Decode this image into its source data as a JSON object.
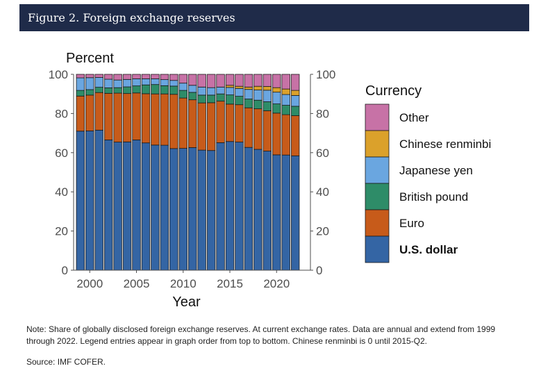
{
  "header": {
    "title": "Figure 2. Foreign exchange reserves"
  },
  "footnote": {
    "note": "Note: Share of globally disclosed foreign exchange reserves. At current exchange rates. Data are annual and extend from 1999 through 2022. Legend entries appear in graph order from top to bottom. Chinese renminbi is 0 until 2015-Q2.",
    "source": "Source: IMF COFER."
  },
  "chart_data": {
    "type": "bar",
    "stacked": true,
    "title": "",
    "ylabel": "Percent",
    "xlabel": "Year",
    "ylim": [
      0,
      100
    ],
    "yticks": [
      "0",
      "20",
      "40",
      "60",
      "80",
      "100"
    ],
    "xticks": [
      "2000",
      "2005",
      "2010",
      "2015",
      "2020"
    ],
    "legend_title": "Currency",
    "legend_position": "right",
    "categories": [
      "1999",
      "2000",
      "2001",
      "2002",
      "2003",
      "2004",
      "2005",
      "2006",
      "2007",
      "2008",
      "2009",
      "2010",
      "2011",
      "2012",
      "2013",
      "2014",
      "2015",
      "2016",
      "2017",
      "2018",
      "2019",
      "2020",
      "2021",
      "2022"
    ],
    "series": [
      {
        "name": "U.S. dollar",
        "color": "#3465a4",
        "values": [
          71.0,
          71.1,
          71.5,
          66.5,
          65.4,
          65.5,
          66.5,
          65.0,
          63.9,
          63.8,
          62.1,
          62.2,
          62.6,
          61.3,
          61.1,
          65.1,
          65.7,
          65.4,
          62.7,
          61.7,
          60.8,
          58.9,
          58.8,
          58.4
        ]
      },
      {
        "name": "Euro",
        "color": "#c75b1a",
        "values": [
          17.9,
          18.3,
          19.2,
          23.8,
          25.0,
          24.7,
          24.0,
          25.1,
          26.1,
          26.2,
          27.7,
          25.7,
          24.4,
          24.1,
          24.4,
          21.2,
          19.1,
          19.1,
          20.2,
          20.7,
          20.6,
          21.3,
          20.6,
          20.5
        ]
      },
      {
        "name": "British pound",
        "color": "#2e8c68",
        "values": [
          2.9,
          2.8,
          2.7,
          2.8,
          2.8,
          3.4,
          3.6,
          4.5,
          4.8,
          4.2,
          4.2,
          3.9,
          3.8,
          4.0,
          3.9,
          3.7,
          4.7,
          4.3,
          4.5,
          4.4,
          4.6,
          4.7,
          4.8,
          4.8
        ]
      },
      {
        "name": "Japanese yen",
        "color": "#6aa6e0",
        "values": [
          6.4,
          6.1,
          5.0,
          4.4,
          3.9,
          3.8,
          3.6,
          3.1,
          2.9,
          3.1,
          2.9,
          3.7,
          3.6,
          4.1,
          3.8,
          3.5,
          3.8,
          4.0,
          4.9,
          5.2,
          5.9,
          6.0,
          5.5,
          5.5
        ]
      },
      {
        "name": "Chinese renminbi",
        "color": "#dba12b",
        "values": [
          0,
          0,
          0,
          0,
          0,
          0,
          0,
          0,
          0,
          0,
          0,
          0,
          0,
          0,
          0,
          0,
          1.1,
          1.1,
          1.2,
          1.9,
          1.9,
          2.3,
          2.8,
          2.6
        ]
      },
      {
        "name": "Other",
        "color": "#c772a6",
        "values": [
          1.8,
          1.7,
          1.6,
          2.5,
          2.9,
          2.6,
          2.3,
          2.3,
          2.3,
          2.7,
          3.1,
          4.5,
          5.6,
          6.5,
          6.8,
          6.5,
          5.6,
          6.1,
          6.5,
          6.1,
          6.2,
          6.8,
          7.5,
          8.2
        ]
      }
    ],
    "legend_order": [
      "Other",
      "Chinese renminbi",
      "Japanese yen",
      "British pound",
      "Euro",
      "U.S. dollar"
    ],
    "legend_bold": "U.S. dollar"
  }
}
